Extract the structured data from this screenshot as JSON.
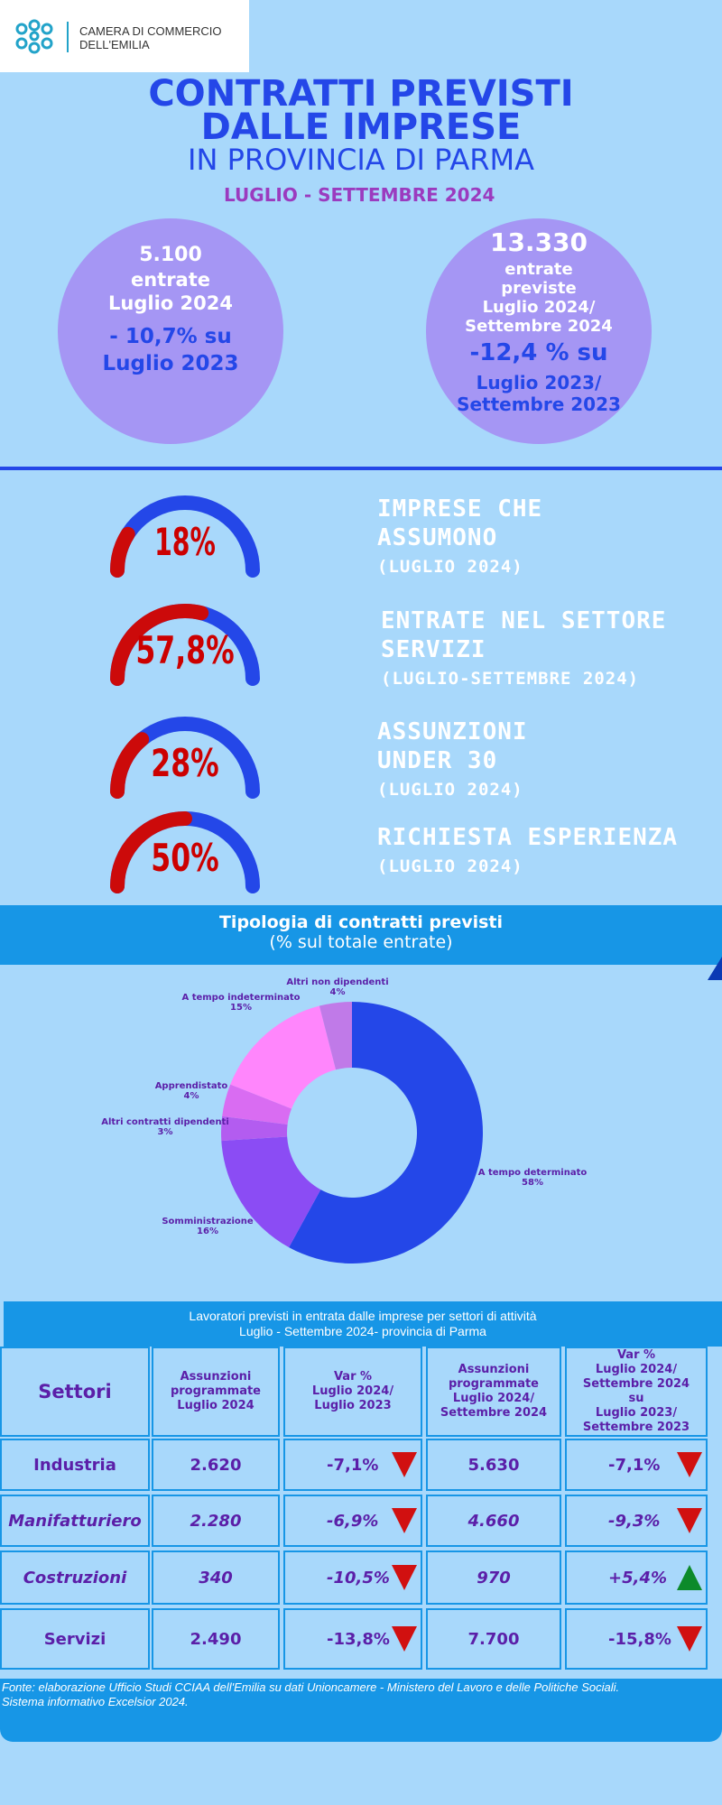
{
  "logo": {
    "line1": "CAMERA DI COMMERCIO",
    "line2": "DELL'EMILIA"
  },
  "header": {
    "title_line1": "CONTRATTI PREVISTI",
    "title_line2": "DALLE IMPRESE",
    "subtitle": "IN PROVINCIA DI PARMA",
    "period": "LUGLIO - SETTEMBRE 2024"
  },
  "circle_left": {
    "value": "5.100",
    "l1": "entrate",
    "l2": "Luglio 2024",
    "change": "- 10,7% su",
    "change2": "Luglio 2023"
  },
  "circle_right": {
    "value": "13.330",
    "l1": "entrate",
    "l2": "previste",
    "l3": "Luglio 2024/",
    "l4": "Settembre 2024",
    "change": "-12,4 % su",
    "change2": "Luglio 2023/",
    "change3": "Settembre 2023"
  },
  "gauges": [
    {
      "pct_text": "18%",
      "value": 18,
      "label1": "IMPRESE CHE",
      "label2": "ASSUMONO",
      "sub": "(LUGLIO 2024)"
    },
    {
      "pct_text": "57,8%",
      "value": 57.8,
      "label1": "ENTRATE NEL SETTORE",
      "label2": "SERVIZI",
      "sub": "(LUGLIO-SETTEMBRE 2024)"
    },
    {
      "pct_text": "28%",
      "value": 28,
      "label1": "ASSUNZIONI",
      "label2": "UNDER 30",
      "sub": "(LUGLIO 2024)"
    },
    {
      "pct_text": "50%",
      "value": 50,
      "label1": "RICHIESTA ESPERIENZA",
      "label2": "",
      "sub": "(LUGLIO 2024)"
    }
  ],
  "colors": {
    "gauge_fill": "#cc0a0a",
    "gauge_track": "#2447e8",
    "accent": "#1796e6",
    "title": "#2447e8"
  },
  "chart_data": {
    "type": "pie",
    "title": "Tipologia di contratti previsti",
    "subtitle": "(% sul totale entrate)",
    "categories": [
      "A tempo determinato",
      "Somministrazione",
      "Altri contratti dipendenti",
      "Apprendistato",
      "A tempo indeterminato",
      "Altri non dipendenti"
    ],
    "values": [
      58,
      16,
      3,
      4,
      15,
      4
    ],
    "labels": [
      "58%",
      "16%",
      "3%",
      "4%",
      "15%",
      "4%"
    ],
    "colors": [
      "#2447e8",
      "#8b4cf4",
      "#b35cf0",
      "#d96cf2",
      "#ff86fc",
      "#c07ae8"
    ]
  },
  "table": {
    "title_line1": "Lavoratori previsti in entrata dalle imprese per settori di attività",
    "title_line2": "Luglio - Settembre 2024- provincia di Parma",
    "headers": {
      "c0": "Settori",
      "c1": [
        "Assunzioni",
        "programmate",
        "Luglio 2024"
      ],
      "c2": [
        "Var %",
        "Luglio 2024/",
        "Luglio 2023"
      ],
      "c3": [
        "Assunzioni",
        "programmate",
        "Luglio 2024/",
        "Settembre 2024"
      ],
      "c4": [
        "Var %",
        "Luglio 2024/",
        "Settembre 2024",
        "su",
        "Luglio 2023/",
        "Settembre 2023"
      ]
    },
    "rows": [
      {
        "sector": "Industria",
        "a": "2.620",
        "v1": "-7,1%",
        "t1": "down",
        "b": "5.630",
        "v2": "-7,1%",
        "t2": "down"
      },
      {
        "sector": "Manifatturiero",
        "a": "2.280",
        "v1": "-6,9%",
        "t1": "down",
        "b": "4.660",
        "v2": "-9,3%",
        "t2": "down"
      },
      {
        "sector": "Costruzioni",
        "a": "340",
        "v1": "-10,5%",
        "t1": "down",
        "b": "970",
        "v2": "+5,4%",
        "t2": "up"
      },
      {
        "sector": "Servizi",
        "a": "2.490",
        "v1": "-13,8%",
        "t1": "down",
        "b": "7.700",
        "v2": "-15,8%",
        "t2": "down"
      }
    ]
  },
  "footer": {
    "line1": "Fonte: elaborazione Ufficio Studi CCIAA dell'Emilia su dati Unioncamere - Ministero del Lavoro e delle Politiche Sociali.",
    "line2": "Sistema informativo Excelsior 2024."
  }
}
